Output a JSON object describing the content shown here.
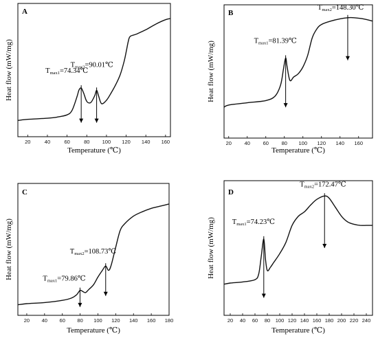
{
  "chart_data": [
    {
      "type": "line",
      "panel_label": "A",
      "xlabel": "Temperature (℃)",
      "ylabel": "Heat flow (mW/mg)",
      "xlim": [
        10,
        165
      ],
      "xticks": [
        20,
        40,
        60,
        80,
        100,
        120,
        140,
        160
      ],
      "ylim": [
        0,
        100
      ],
      "x": [
        10,
        20,
        40,
        50,
        60,
        65,
        70,
        72,
        74.34,
        77,
        80,
        84,
        88,
        90.01,
        92,
        95,
        100,
        105,
        110,
        114,
        118,
        120,
        122,
        124,
        130,
        140,
        150,
        160,
        165
      ],
      "y": [
        5,
        6,
        7,
        8,
        10,
        14,
        26,
        32,
        34,
        29,
        22,
        21,
        27,
        32,
        27,
        20,
        23,
        30,
        38,
        46,
        58,
        66,
        75,
        80,
        82,
        86,
        91,
        95,
        96
      ],
      "annotations": [
        {
          "label": "T",
          "sub": "max1",
          "value": "=74.34℃",
          "x": 74.34,
          "y": 34,
          "arrow_to": 3
        },
        {
          "label": "T",
          "sub": "max2",
          "value": "=90.01℃",
          "x": 90.01,
          "y": 32,
          "arrow_to": 3
        }
      ]
    },
    {
      "type": "line",
      "panel_label": "B",
      "xlabel": "Temperature (℃)",
      "ylabel": "Heat flow (mW/mg)",
      "xlim": [
        15,
        175
      ],
      "xticks": [
        20,
        40,
        60,
        80,
        100,
        120,
        140,
        160
      ],
      "ylim": [
        0,
        100
      ],
      "x": [
        15,
        20,
        40,
        60,
        70,
        76,
        79,
        81.39,
        83,
        86,
        90,
        95,
        100,
        105,
        110,
        115,
        120,
        130,
        140,
        148.3,
        155,
        165,
        175
      ],
      "y": [
        18,
        20,
        22,
        24,
        28,
        38,
        52,
        62,
        54,
        42,
        45,
        48,
        54,
        64,
        80,
        88,
        92,
        95,
        97,
        98,
        98,
        97,
        95
      ],
      "annotations": [
        {
          "label": "T",
          "sub": "max1",
          "value": "=81.39℃",
          "x": 81.39,
          "y": 62,
          "arrow_to": 18
        },
        {
          "label": "T",
          "sub": "max2",
          "value": "=148.30℃",
          "x": 148.3,
          "y": 98,
          "arrow_to": 60
        }
      ]
    },
    {
      "type": "line",
      "panel_label": "C",
      "xlabel": "Temperature (℃)",
      "ylabel": "Heat flow (mW/mg)",
      "xlim": [
        10,
        180
      ],
      "xticks": [
        20,
        40,
        60,
        80,
        100,
        120,
        140,
        160,
        180
      ],
      "ylim": [
        0,
        100
      ],
      "x": [
        10,
        20,
        40,
        60,
        70,
        76,
        79.86,
        83,
        86,
        90,
        95,
        100,
        105,
        108.73,
        112,
        115,
        120,
        125,
        130,
        140,
        150,
        160,
        170,
        180
      ],
      "y": [
        0,
        1,
        2,
        4,
        6,
        9,
        13,
        12,
        11,
        14,
        18,
        25,
        31,
        35,
        31,
        36,
        52,
        67,
        73,
        80,
        84,
        87,
        89,
        91
      ],
      "annotations": [
        {
          "label": "T",
          "sub": "max1",
          "value": "=79.86℃",
          "x": 79.86,
          "y": 13,
          "arrow_to": -2
        },
        {
          "label": "T",
          "sub": "max2",
          "value": "=108.73℃",
          "x": 108.73,
          "y": 35,
          "arrow_to": 8
        }
      ]
    },
    {
      "type": "line",
      "panel_label": "D",
      "xlabel": "Temperature (℃)",
      "ylabel": "Heat flow (mW/mg)",
      "xlim": [
        10,
        250
      ],
      "xticks": [
        20,
        40,
        60,
        80,
        100,
        120,
        140,
        160,
        180,
        200,
        220,
        240
      ],
      "ylim": [
        0,
        100
      ],
      "x": [
        10,
        20,
        40,
        60,
        66,
        70,
        74.23,
        77,
        80,
        85,
        90,
        100,
        110,
        120,
        130,
        140,
        150,
        160,
        172.47,
        180,
        190,
        200,
        210,
        220,
        230,
        240,
        250
      ],
      "y": [
        18,
        19,
        20,
        22,
        27,
        42,
        58,
        40,
        30,
        33,
        37,
        45,
        55,
        70,
        78,
        82,
        88,
        93,
        96,
        94,
        86,
        78,
        73,
        71,
        70,
        70,
        70
      ],
      "annotations": [
        {
          "label": "T",
          "sub": "max1",
          "value": "=74.23℃",
          "x": 74.23,
          "y": 58,
          "arrow_to": 6
        },
        {
          "label": "T",
          "sub": "max2",
          "value": "=172.47℃",
          "x": 172.47,
          "y": 96,
          "arrow_to": 50
        }
      ]
    }
  ]
}
